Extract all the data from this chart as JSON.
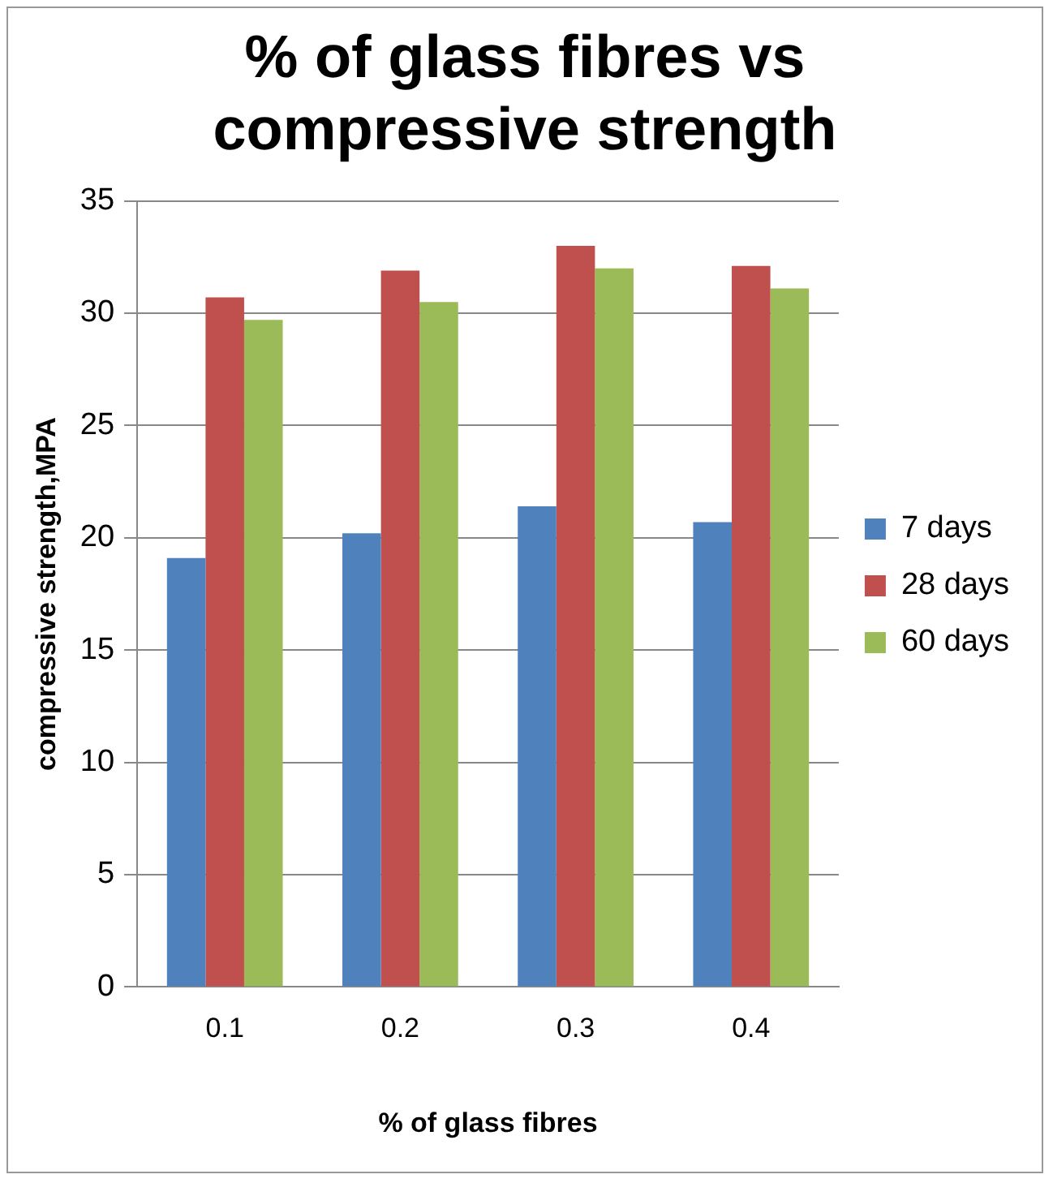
{
  "chart_data": {
    "type": "bar",
    "title": [
      "% of glass fibres vs",
      "compressive strength"
    ],
    "xlabel": "% of glass fibres",
    "ylabel": "compressive strength,MPA",
    "categories": [
      "0.1",
      "0.2",
      "0.3",
      "0.4"
    ],
    "series": [
      {
        "name": "7 days",
        "color": "#4f81bd",
        "values": [
          19.1,
          20.2,
          21.4,
          20.7
        ]
      },
      {
        "name": "28 days",
        "color": "#c0504d",
        "values": [
          30.7,
          31.9,
          33.0,
          32.1
        ]
      },
      {
        "name": "60 days",
        "color": "#9bbb59",
        "values": [
          29.7,
          30.5,
          32.0,
          31.1
        ]
      }
    ],
    "ylim": [
      0,
      35
    ],
    "yticks": [
      0,
      5,
      10,
      15,
      20,
      25,
      30,
      35
    ],
    "grid": "y",
    "legend": "right"
  }
}
